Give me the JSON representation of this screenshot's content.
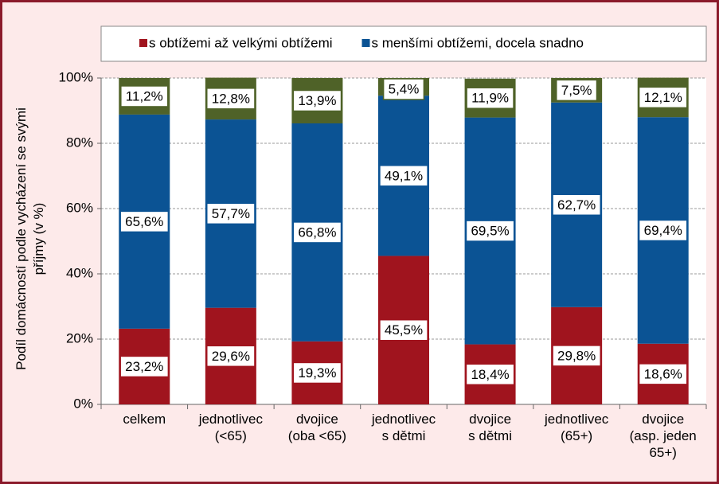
{
  "chart_data": {
    "type": "stacked_bar",
    "ylabel": [
      "Podíl  domácností podle vycházení se svými",
      "příjmy (v %)"
    ],
    "categories": [
      [
        "celkem"
      ],
      [
        "jednotlivec",
        "(<65)"
      ],
      [
        "dvojice",
        "(oba <65)"
      ],
      [
        "jednotlivec",
        "s dětmi"
      ],
      [
        "dvojice",
        "s dětmi"
      ],
      [
        "jednotlivec",
        "(65+)"
      ],
      [
        "dvojice",
        "(asp. jeden",
        "65+)"
      ]
    ],
    "series": [
      {
        "name": "s obtížemi až velkými obtížemi",
        "color": "#a0141e",
        "values": [
          23.2,
          29.6,
          19.3,
          45.5,
          18.4,
          29.8,
          18.6
        ],
        "value_labels": [
          "23,2%",
          "29,6%",
          "19,3%",
          "45,5%",
          "18,4%",
          "29,8%",
          "18,6%"
        ]
      },
      {
        "name": "s menšími obtížemi, docela snadno",
        "color": "#0b5394",
        "values": [
          65.6,
          57.7,
          66.8,
          49.1,
          69.5,
          62.7,
          69.4
        ],
        "value_labels": [
          "65,6%",
          "57,7%",
          "66,8%",
          "49,1%",
          "69,5%",
          "62,7%",
          "69,4%"
        ]
      },
      {
        "color": "#4f6228",
        "values": [
          11.2,
          12.8,
          13.9,
          5.4,
          11.9,
          7.5,
          12.1
        ],
        "value_labels": [
          "11,2%",
          "12,8%",
          "13,9%",
          "5,4%",
          "11,9%",
          "7,5%",
          "12,1%"
        ]
      }
    ],
    "ylim": [
      0,
      100
    ],
    "yticks": [
      {
        "value": 0,
        "label": "0%"
      },
      {
        "value": 20,
        "label": "20%"
      },
      {
        "value": 40,
        "label": "40%"
      },
      {
        "value": 60,
        "label": "60%"
      },
      {
        "value": 80,
        "label": "80%"
      },
      {
        "value": 100,
        "label": "100%"
      }
    ],
    "grid": true
  }
}
